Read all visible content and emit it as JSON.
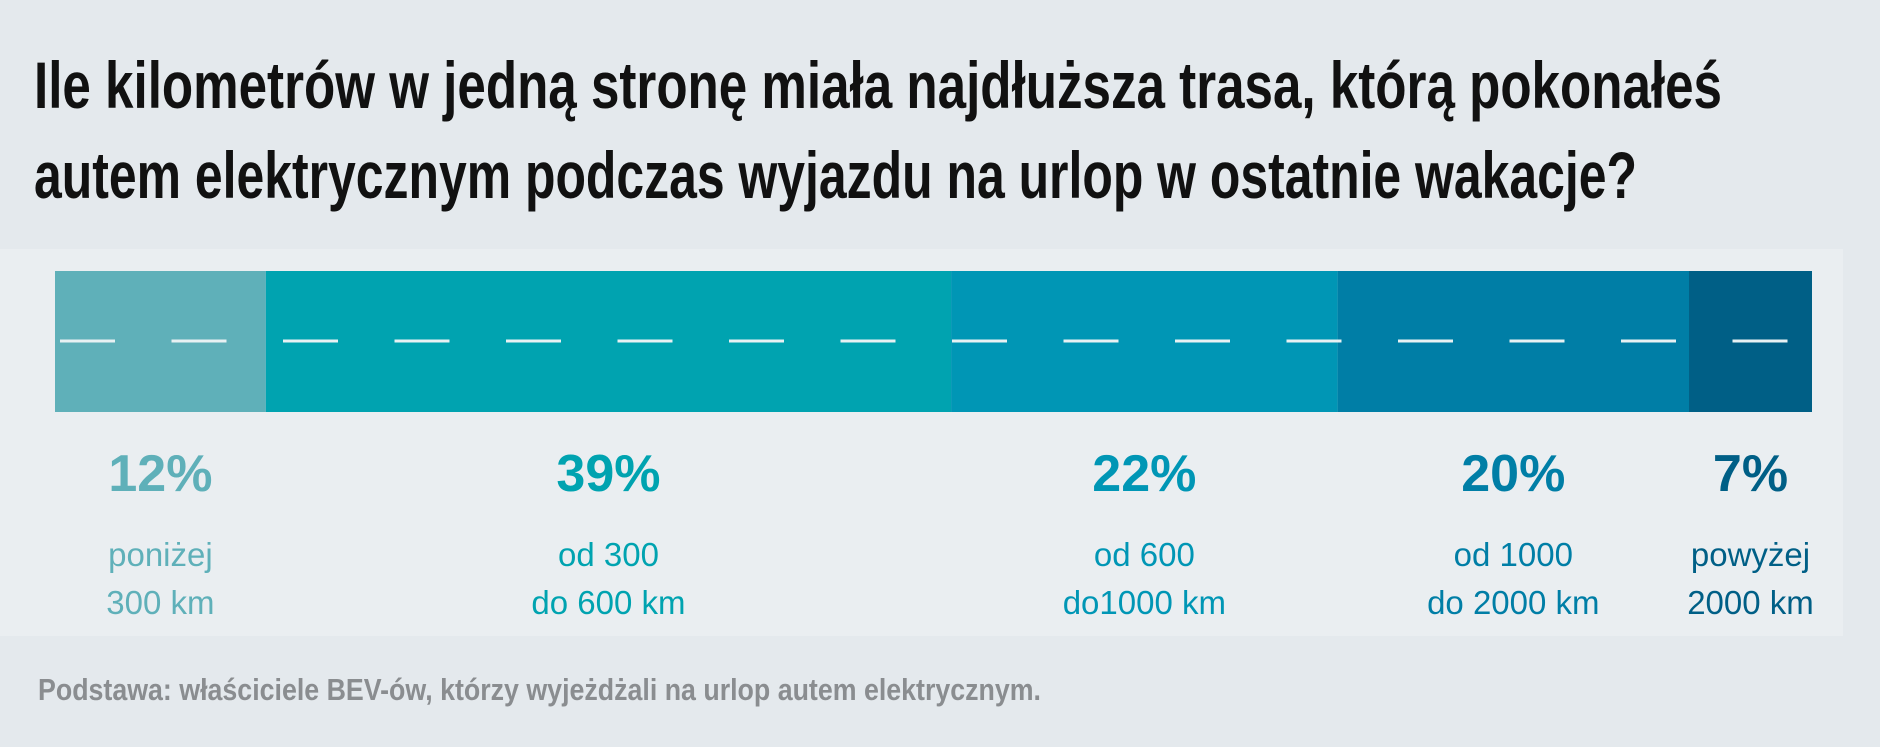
{
  "chart_data": {
    "type": "stacked-bar",
    "title": [
      "Ile kilometrów w jedną stronę miała najdłuższa trasa, którą pokonałeś",
      "autem elektrycznym podczas wyjazdu na urlop w ostatnie wakacje?"
    ],
    "categories": [
      [
        "poniżej",
        "300 km"
      ],
      [
        "od 300",
        "do 600 km"
      ],
      [
        "od 600",
        "do1000 km"
      ],
      [
        "od 1000",
        "do 2000 km"
      ],
      [
        "powyżej",
        "2000 km"
      ]
    ],
    "values": [
      12,
      39,
      22,
      20,
      7
    ],
    "value_labels": [
      "12%",
      "39%",
      "22%",
      "20%",
      "7%"
    ],
    "colors": [
      "#5fb0b9",
      "#00a3b0",
      "#0096b5",
      "#007ea6",
      "#005f86"
    ],
    "note": "Podstawa: właściciele BEV-ów, którzy wyjeżdżali na urlop autem elektrycznym."
  }
}
